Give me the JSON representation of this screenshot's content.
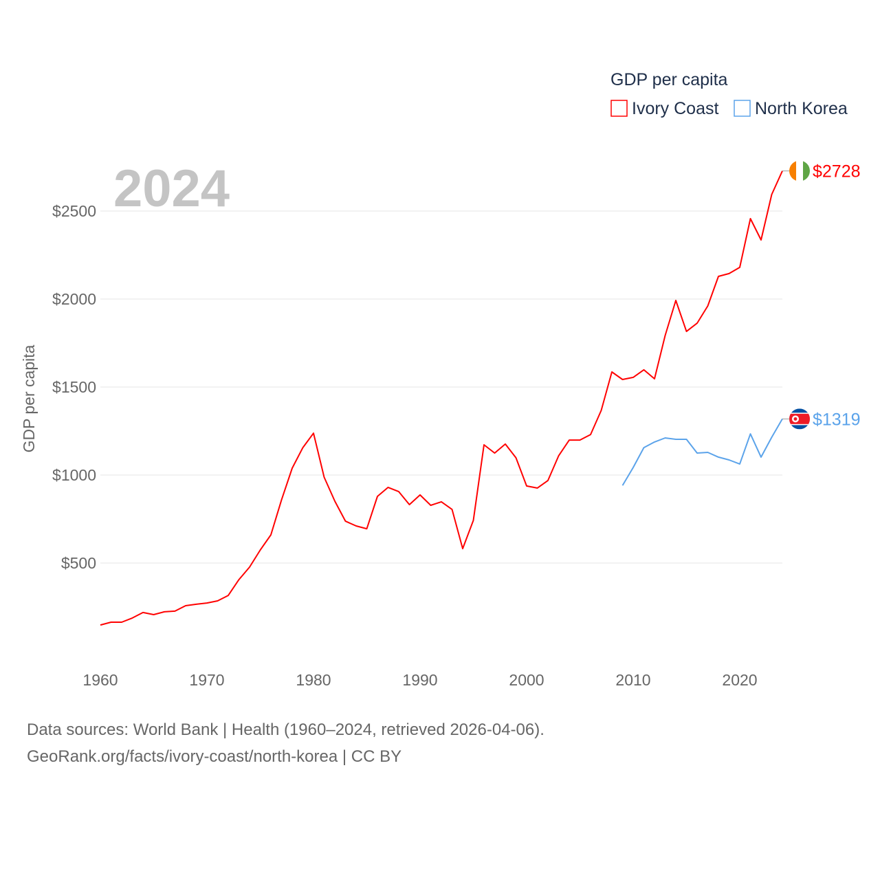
{
  "chart_data": {
    "type": "line",
    "title": "GDP per capita",
    "ylabel": "GDP per capita",
    "xlabel": "",
    "year_label": "2024",
    "xlim": [
      1960,
      2024
    ],
    "ylim": [
      0,
      2750
    ],
    "x_ticks": [
      1960,
      1970,
      1980,
      1990,
      2000,
      2010,
      2020
    ],
    "y_ticks": [
      500,
      1000,
      1500,
      2000,
      2500
    ],
    "y_tick_labels": [
      "$500",
      "$1000",
      "$1500",
      "$2000",
      "$2500"
    ],
    "grid": true,
    "legend_position": "top-right",
    "series": [
      {
        "name": "Ivory Coast",
        "color": "#ff0000",
        "end_label": "$2728",
        "x_start": 1960,
        "values": [
          148,
          164,
          164,
          188,
          219,
          207,
          223,
          227,
          258,
          266,
          273,
          285,
          316,
          406,
          477,
          574,
          660,
          859,
          1039,
          1156,
          1238,
          988,
          852,
          738,
          711,
          695,
          879,
          930,
          906,
          832,
          887,
          828,
          848,
          805,
          582,
          742,
          1172,
          1125,
          1176,
          1098,
          938,
          926,
          969,
          1109,
          1199,
          1199,
          1230,
          1367,
          1586,
          1543,
          1555,
          1598,
          1547,
          1793,
          1992,
          1816,
          1863,
          1961,
          2129,
          2145,
          2180,
          2457,
          2336,
          2594,
          2728
        ]
      },
      {
        "name": "North Korea",
        "color": "#5ba3ea",
        "end_label": "$1319",
        "x_start": 2009,
        "values": [
          941,
          1043,
          1156,
          1188,
          1211,
          1203,
          1203,
          1125,
          1129,
          1102,
          1086,
          1063,
          1234,
          1102,
          1215,
          1319
        ]
      }
    ]
  },
  "footer": {
    "line1": "Data sources: World Bank | Health (1960–2024, retrieved 2026-04-06).",
    "line2": "GeoRank.org/facts/ivory-coast/north-korea | CC BY"
  }
}
